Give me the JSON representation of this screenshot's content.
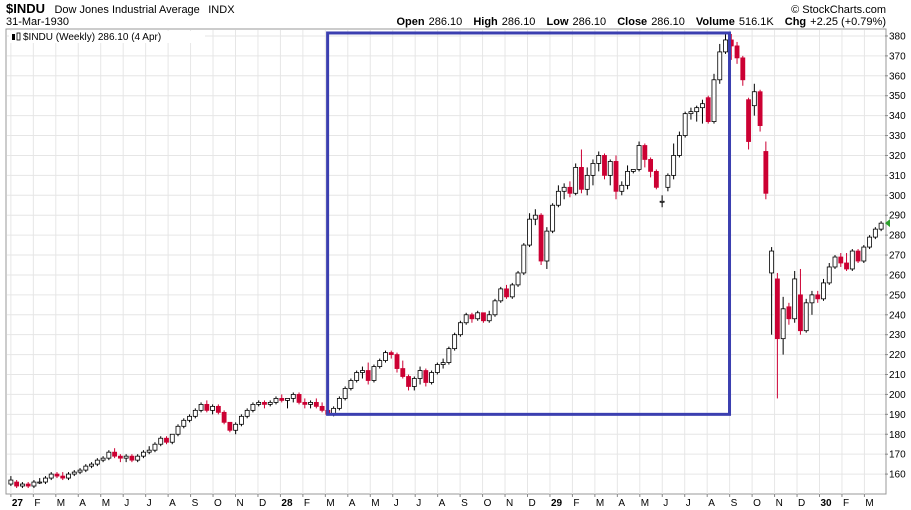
{
  "header": {
    "symbol": "$INDU",
    "name": "Dow Jones Industrial Average",
    "exchange": "INDX",
    "date": "31-Mar-1930",
    "brand": "© StockCharts.com",
    "ohlc": [
      {
        "label": "Open",
        "value": "286.10"
      },
      {
        "label": "High",
        "value": "286.10"
      },
      {
        "label": "Low",
        "value": "286.10"
      },
      {
        "label": "Close",
        "value": "286.10"
      },
      {
        "label": "Volume",
        "value": "516.1K"
      },
      {
        "label": "Chg",
        "value": "+2.25 (+0.79%)"
      }
    ],
    "legend": "$INDU (Weekly) 286.10 (4 Apr)",
    "arrow_color": "#2ca02c"
  },
  "colors": {
    "up": "#ffffff",
    "down": "#cc0033",
    "outline": "#000000",
    "highlight_box": "#3b3fb0",
    "grid": "#e6e6e6"
  },
  "chart_data": {
    "type": "candlestick",
    "y_min": 150,
    "y_max": 383,
    "y_ticks": [
      160,
      170,
      180,
      190,
      200,
      210,
      220,
      230,
      240,
      250,
      260,
      270,
      280,
      290,
      300,
      310,
      320,
      330,
      340,
      350,
      360,
      370,
      380
    ],
    "x_labels": [
      "27",
      "F",
      "M",
      "A",
      "M",
      "J",
      "J",
      "A",
      "S",
      "O",
      "N",
      "D",
      "28",
      "F",
      "M",
      "A",
      "M",
      "J",
      "J",
      "A",
      "S",
      "O",
      "N",
      "D",
      "29",
      "F",
      "M",
      "A",
      "M",
      "J",
      "J",
      "A",
      "S",
      "O",
      "N",
      "D",
      "30",
      "F",
      "M"
    ],
    "highlight": {
      "from_week": "1928-02",
      "to_week": "1929-09",
      "low": 190,
      "high": 380
    },
    "candles": [
      {
        "o": 155,
        "h": 159,
        "l": 154,
        "c": 157
      },
      {
        "o": 156,
        "h": 157,
        "l": 153,
        "c": 154
      },
      {
        "o": 154,
        "h": 156,
        "l": 153,
        "c": 155
      },
      {
        "o": 155,
        "h": 156,
        "l": 153,
        "c": 154
      },
      {
        "o": 154,
        "h": 157,
        "l": 153,
        "c": 156
      },
      {
        "o": 156,
        "h": 158,
        "l": 155,
        "c": 156
      },
      {
        "o": 156,
        "h": 159,
        "l": 155,
        "c": 158
      },
      {
        "o": 158,
        "h": 161,
        "l": 157,
        "c": 160
      },
      {
        "o": 160,
        "h": 161,
        "l": 158,
        "c": 159
      },
      {
        "o": 159,
        "h": 161,
        "l": 157,
        "c": 158
      },
      {
        "o": 158,
        "h": 161,
        "l": 157,
        "c": 160
      },
      {
        "o": 160,
        "h": 162,
        "l": 159,
        "c": 161
      },
      {
        "o": 161,
        "h": 163,
        "l": 160,
        "c": 162
      },
      {
        "o": 162,
        "h": 165,
        "l": 161,
        "c": 164
      },
      {
        "o": 164,
        "h": 166,
        "l": 163,
        "c": 165
      },
      {
        "o": 165,
        "h": 168,
        "l": 164,
        "c": 167
      },
      {
        "o": 167,
        "h": 169,
        "l": 166,
        "c": 168
      },
      {
        "o": 168,
        "h": 172,
        "l": 167,
        "c": 171
      },
      {
        "o": 171,
        "h": 173,
        "l": 168,
        "c": 169
      },
      {
        "o": 169,
        "h": 170,
        "l": 166,
        "c": 168
      },
      {
        "o": 168,
        "h": 170,
        "l": 166,
        "c": 169
      },
      {
        "o": 169,
        "h": 170,
        "l": 166,
        "c": 167
      },
      {
        "o": 167,
        "h": 170,
        "l": 166,
        "c": 169
      },
      {
        "o": 169,
        "h": 172,
        "l": 168,
        "c": 171
      },
      {
        "o": 171,
        "h": 174,
        "l": 170,
        "c": 172
      },
      {
        "o": 172,
        "h": 176,
        "l": 171,
        "c": 175
      },
      {
        "o": 175,
        "h": 179,
        "l": 174,
        "c": 178
      },
      {
        "o": 178,
        "h": 179,
        "l": 175,
        "c": 176
      },
      {
        "o": 176,
        "h": 180,
        "l": 175,
        "c": 180
      },
      {
        "o": 180,
        "h": 185,
        "l": 179,
        "c": 184
      },
      {
        "o": 184,
        "h": 188,
        "l": 183,
        "c": 187
      },
      {
        "o": 187,
        "h": 190,
        "l": 186,
        "c": 189
      },
      {
        "o": 189,
        "h": 193,
        "l": 188,
        "c": 192
      },
      {
        "o": 192,
        "h": 196,
        "l": 191,
        "c": 195
      },
      {
        "o": 195,
        "h": 197,
        "l": 191,
        "c": 192
      },
      {
        "o": 192,
        "h": 195,
        "l": 190,
        "c": 194
      },
      {
        "o": 194,
        "h": 195,
        "l": 190,
        "c": 191
      },
      {
        "o": 191,
        "h": 192,
        "l": 185,
        "c": 186
      },
      {
        "o": 186,
        "h": 186,
        "l": 181,
        "c": 182
      },
      {
        "o": 182,
        "h": 186,
        "l": 180,
        "c": 185
      },
      {
        "o": 185,
        "h": 190,
        "l": 184,
        "c": 189
      },
      {
        "o": 189,
        "h": 193,
        "l": 188,
        "c": 192
      },
      {
        "o": 192,
        "h": 196,
        "l": 191,
        "c": 195
      },
      {
        "o": 195,
        "h": 197,
        "l": 194,
        "c": 196
      },
      {
        "o": 196,
        "h": 197,
        "l": 193,
        "c": 195
      },
      {
        "o": 195,
        "h": 197,
        "l": 194,
        "c": 196
      },
      {
        "o": 196,
        "h": 199,
        "l": 195,
        "c": 198
      },
      {
        "o": 198,
        "h": 200,
        "l": 196,
        "c": 197
      },
      {
        "o": 197,
        "h": 198,
        "l": 193,
        "c": 198
      },
      {
        "o": 198,
        "h": 201,
        "l": 196,
        "c": 200
      },
      {
        "o": 200,
        "h": 201,
        "l": 195,
        "c": 196
      },
      {
        "o": 196,
        "h": 198,
        "l": 193,
        "c": 195
      },
      {
        "o": 195,
        "h": 197,
        "l": 193,
        "c": 196
      },
      {
        "o": 196,
        "h": 198,
        "l": 193,
        "c": 194
      },
      {
        "o": 194,
        "h": 196,
        "l": 191,
        "c": 192
      },
      {
        "o": 192,
        "h": 194,
        "l": 190,
        "c": 190
      },
      {
        "o": 190,
        "h": 194,
        "l": 189,
        "c": 193
      },
      {
        "o": 193,
        "h": 199,
        "l": 192,
        "c": 198
      },
      {
        "o": 198,
        "h": 204,
        "l": 197,
        "c": 203
      },
      {
        "o": 203,
        "h": 208,
        "l": 202,
        "c": 207
      },
      {
        "o": 207,
        "h": 212,
        "l": 206,
        "c": 211
      },
      {
        "o": 211,
        "h": 214,
        "l": 208,
        "c": 212
      },
      {
        "o": 212,
        "h": 216,
        "l": 205,
        "c": 207
      },
      {
        "o": 207,
        "h": 215,
        "l": 206,
        "c": 214
      },
      {
        "o": 214,
        "h": 218,
        "l": 213,
        "c": 217
      },
      {
        "o": 217,
        "h": 222,
        "l": 216,
        "c": 221
      },
      {
        "o": 221,
        "h": 222,
        "l": 218,
        "c": 220
      },
      {
        "o": 220,
        "h": 221,
        "l": 211,
        "c": 213
      },
      {
        "o": 213,
        "h": 217,
        "l": 208,
        "c": 209
      },
      {
        "o": 209,
        "h": 210,
        "l": 202,
        "c": 204
      },
      {
        "o": 204,
        "h": 209,
        "l": 202,
        "c": 208
      },
      {
        "o": 208,
        "h": 214,
        "l": 205,
        "c": 212
      },
      {
        "o": 212,
        "h": 213,
        "l": 204,
        "c": 206
      },
      {
        "o": 206,
        "h": 212,
        "l": 205,
        "c": 211
      },
      {
        "o": 211,
        "h": 216,
        "l": 210,
        "c": 215
      },
      {
        "o": 215,
        "h": 218,
        "l": 213,
        "c": 216
      },
      {
        "o": 216,
        "h": 224,
        "l": 215,
        "c": 223
      },
      {
        "o": 223,
        "h": 231,
        "l": 222,
        "c": 230
      },
      {
        "o": 230,
        "h": 237,
        "l": 229,
        "c": 236
      },
      {
        "o": 236,
        "h": 241,
        "l": 235,
        "c": 240
      },
      {
        "o": 240,
        "h": 241,
        "l": 236,
        "c": 238
      },
      {
        "o": 238,
        "h": 242,
        "l": 237,
        "c": 241
      },
      {
        "o": 241,
        "h": 241,
        "l": 236,
        "c": 237
      },
      {
        "o": 237,
        "h": 242,
        "l": 236,
        "c": 240
      },
      {
        "o": 240,
        "h": 248,
        "l": 239,
        "c": 247
      },
      {
        "o": 247,
        "h": 254,
        "l": 246,
        "c": 253
      },
      {
        "o": 253,
        "h": 255,
        "l": 248,
        "c": 249
      },
      {
        "o": 249,
        "h": 256,
        "l": 248,
        "c": 255
      },
      {
        "o": 255,
        "h": 262,
        "l": 254,
        "c": 261
      },
      {
        "o": 261,
        "h": 276,
        "l": 260,
        "c": 275
      },
      {
        "o": 275,
        "h": 291,
        "l": 274,
        "c": 288
      },
      {
        "o": 288,
        "h": 293,
        "l": 285,
        "c": 290
      },
      {
        "o": 290,
        "h": 291,
        "l": 265,
        "c": 267
      },
      {
        "o": 267,
        "h": 284,
        "l": 263,
        "c": 282
      },
      {
        "o": 282,
        "h": 296,
        "l": 281,
        "c": 295
      },
      {
        "o": 295,
        "h": 305,
        "l": 294,
        "c": 302
      },
      {
        "o": 302,
        "h": 306,
        "l": 298,
        "c": 304
      },
      {
        "o": 304,
        "h": 307,
        "l": 299,
        "c": 301
      },
      {
        "o": 301,
        "h": 316,
        "l": 300,
        "c": 314
      },
      {
        "o": 314,
        "h": 323,
        "l": 301,
        "c": 303
      },
      {
        "o": 303,
        "h": 314,
        "l": 300,
        "c": 310
      },
      {
        "o": 310,
        "h": 318,
        "l": 305,
        "c": 316
      },
      {
        "o": 316,
        "h": 322,
        "l": 312,
        "c": 320
      },
      {
        "o": 320,
        "h": 321,
        "l": 308,
        "c": 310
      },
      {
        "o": 310,
        "h": 318,
        "l": 305,
        "c": 317
      },
      {
        "o": 317,
        "h": 320,
        "l": 298,
        "c": 302
      },
      {
        "o": 302,
        "h": 307,
        "l": 300,
        "c": 305
      },
      {
        "o": 305,
        "h": 315,
        "l": 303,
        "c": 312
      },
      {
        "o": 312,
        "h": 313,
        "l": 311,
        "c": 313
      },
      {
        "o": 313,
        "h": 327,
        "l": 312,
        "c": 325
      },
      {
        "o": 325,
        "h": 326,
        "l": 314,
        "c": 318
      },
      {
        "o": 318,
        "h": 319,
        "l": 309,
        "c": 312
      },
      {
        "o": 312,
        "h": 313,
        "l": 303,
        "c": 304
      },
      {
        "o": 297,
        "h": 300,
        "l": 294,
        "c": 297
      },
      {
        "o": 304,
        "h": 311,
        "l": 302,
        "c": 310
      },
      {
        "o": 310,
        "h": 326,
        "l": 308,
        "c": 320
      },
      {
        "o": 320,
        "h": 332,
        "l": 319,
        "c": 330
      },
      {
        "o": 330,
        "h": 342,
        "l": 329,
        "c": 341
      },
      {
        "o": 341,
        "h": 344,
        "l": 338,
        "c": 342
      },
      {
        "o": 342,
        "h": 345,
        "l": 337,
        "c": 344
      },
      {
        "o": 344,
        "h": 348,
        "l": 336,
        "c": 346
      },
      {
        "o": 349,
        "h": 350,
        "l": 336,
        "c": 337
      },
      {
        "o": 337,
        "h": 361,
        "l": 336,
        "c": 358
      },
      {
        "o": 358,
        "h": 376,
        "l": 356,
        "c": 372
      },
      {
        "o": 372,
        "h": 381,
        "l": 371,
        "c": 378
      },
      {
        "o": 378,
        "h": 381,
        "l": 368,
        "c": 375
      },
      {
        "o": 375,
        "h": 377,
        "l": 366,
        "c": 369
      },
      {
        "o": 369,
        "h": 370,
        "l": 355,
        "c": 358
      },
      {
        "o": 348,
        "h": 349,
        "l": 323,
        "c": 327
      },
      {
        "o": 345,
        "h": 356,
        "l": 340,
        "c": 352
      },
      {
        "o": 352,
        "h": 353,
        "l": 332,
        "c": 335
      },
      {
        "o": 322,
        "h": 327,
        "l": 298,
        "c": 301
      },
      {
        "o": 261,
        "h": 274,
        "l": 230,
        "c": 272
      },
      {
        "o": 258,
        "h": 261,
        "l": 198,
        "c": 228
      },
      {
        "o": 228,
        "h": 249,
        "l": 220,
        "c": 243
      },
      {
        "o": 244,
        "h": 246,
        "l": 235,
        "c": 238
      },
      {
        "o": 238,
        "h": 262,
        "l": 236,
        "c": 258
      },
      {
        "o": 250,
        "h": 263,
        "l": 230,
        "c": 232
      },
      {
        "o": 232,
        "h": 248,
        "l": 231,
        "c": 246
      },
      {
        "o": 246,
        "h": 252,
        "l": 240,
        "c": 250
      },
      {
        "o": 250,
        "h": 252,
        "l": 246,
        "c": 248
      },
      {
        "o": 248,
        "h": 258,
        "l": 247,
        "c": 256
      },
      {
        "o": 256,
        "h": 266,
        "l": 255,
        "c": 264
      },
      {
        "o": 264,
        "h": 270,
        "l": 263,
        "c": 269
      },
      {
        "o": 269,
        "h": 271,
        "l": 264,
        "c": 266
      },
      {
        "o": 266,
        "h": 271,
        "l": 262,
        "c": 263
      },
      {
        "o": 263,
        "h": 273,
        "l": 262,
        "c": 272
      },
      {
        "o": 272,
        "h": 273,
        "l": 266,
        "c": 267
      },
      {
        "o": 267,
        "h": 275,
        "l": 266,
        "c": 274
      },
      {
        "o": 274,
        "h": 280,
        "l": 273,
        "c": 279
      },
      {
        "o": 279,
        "h": 284,
        "l": 278,
        "c": 283
      },
      {
        "o": 283,
        "h": 287,
        "l": 282,
        "c": 286
      }
    ]
  }
}
